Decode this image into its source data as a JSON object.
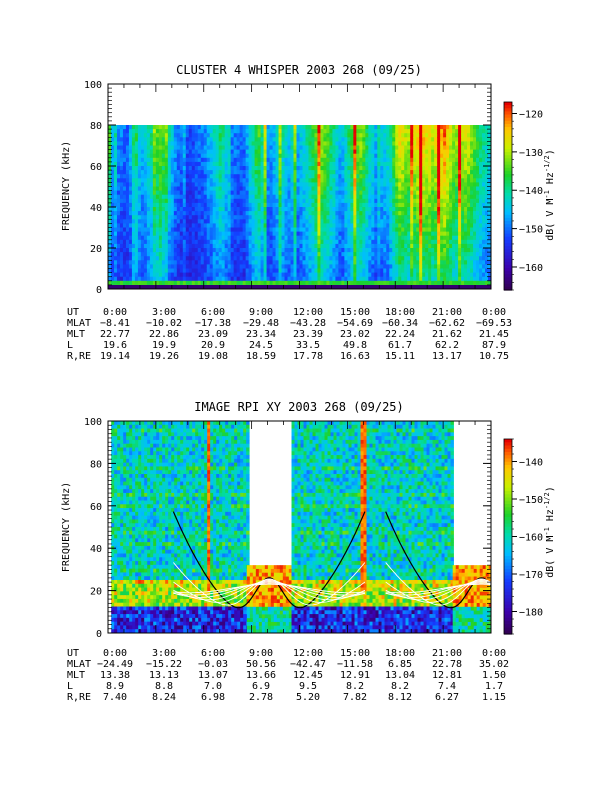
{
  "chart_data": [
    {
      "type": "heatmap",
      "title": "CLUSTER 4 WHISPER 2003 268 (09/25)",
      "ylabel": "FREQUENCY (kHz)",
      "ylim": [
        0,
        100
      ],
      "y_ticks": [
        "0",
        "20",
        "40",
        "60",
        "80",
        "100"
      ],
      "data_freq_max": 80,
      "x_ticks": [
        "0:00",
        "3:00",
        "6:00",
        "9:00",
        "12:00",
        "15:00",
        "18:00",
        "21:00",
        "0:00"
      ],
      "colorbar": {
        "label": "dB( V M",
        "label_sup1": "-1",
        "label_mid": " Hz",
        "label_sup2": "-1/2",
        "label_end": ")",
        "range": [
          -166,
          -117
        ],
        "ticks": [
          -120,
          -130,
          -140,
          -150,
          -160
        ]
      },
      "orbit_table": {
        "rows": [
          {
            "label": "UT",
            "values": [
              "0:00",
              "3:00",
              "6:00",
              "9:00",
              "12:00",
              "15:00",
              "18:00",
              "21:00",
              "0:00"
            ]
          },
          {
            "label": "MLAT",
            "values": [
              "-8.41",
              "-10.02",
              "-17.38",
              "-29.48",
              "-43.28",
              "-54.69",
              "-60.34",
              "-62.62",
              "-69.53"
            ]
          },
          {
            "label": "MLT",
            "values": [
              "22.77",
              "22.86",
              "23.09",
              "23.34",
              "23.39",
              "23.02",
              "22.24",
              "21.62",
              "21.45"
            ]
          },
          {
            "label": "L",
            "values": [
              "19.6",
              "19.9",
              "20.9",
              "24.5",
              "33.5",
              "49.8",
              "61.7",
              "62.2",
              "87.9"
            ]
          },
          {
            "label": "R,RE",
            "values": [
              "19.14",
              "19.26",
              "19.08",
              "18.59",
              "17.78",
              "16.63",
              "15.11",
              "13.17",
              "10.75"
            ]
          }
        ]
      },
      "activity_profile": [
        {
          "x": 0.0,
          "level": 0.2
        },
        {
          "x": 0.5,
          "level": 0.3
        },
        {
          "x": 1.2,
          "level": 0.25
        },
        {
          "x": 1.6,
          "level": 0.6
        },
        {
          "x": 2.0,
          "level": 0.35
        },
        {
          "x": 2.6,
          "level": 0.5
        },
        {
          "x": 3.2,
          "level": 0.7
        },
        {
          "x": 3.8,
          "level": 0.45
        },
        {
          "x": 4.2,
          "level": 0.3
        },
        {
          "x": 5.0,
          "level": 0.2
        },
        {
          "x": 6.0,
          "level": 0.3
        },
        {
          "x": 7.0,
          "level": 0.55
        },
        {
          "x": 7.6,
          "level": 0.3
        },
        {
          "x": 8.4,
          "level": 0.25
        },
        {
          "x": 9.3,
          "level": 0.65
        },
        {
          "x": 10.0,
          "level": 0.3
        },
        {
          "x": 10.8,
          "level": 0.5
        },
        {
          "x": 11.6,
          "level": 0.3
        },
        {
          "x": 12.6,
          "level": 0.55
        },
        {
          "x": 13.2,
          "level": 0.75
        },
        {
          "x": 13.8,
          "level": 0.6
        },
        {
          "x": 14.5,
          "level": 0.35
        },
        {
          "x": 15.2,
          "level": 0.6
        },
        {
          "x": 15.8,
          "level": 0.7
        },
        {
          "x": 16.6,
          "level": 0.35
        },
        {
          "x": 17.5,
          "level": 0.45
        },
        {
          "x": 18.2,
          "level": 0.85
        },
        {
          "x": 18.8,
          "level": 0.7
        },
        {
          "x": 19.5,
          "level": 0.9
        },
        {
          "x": 20.2,
          "level": 0.75
        },
        {
          "x": 21.0,
          "level": 0.95
        },
        {
          "x": 21.6,
          "level": 0.7
        },
        {
          "x": 22.4,
          "level": 0.8
        },
        {
          "x": 23.2,
          "level": 0.55
        },
        {
          "x": 24.0,
          "level": 0.4
        }
      ]
    },
    {
      "type": "heatmap",
      "title": "IMAGE RPI XY 2003 268 (09/25)",
      "ylabel": "FREQUENCY (kHz)",
      "ylim": [
        0,
        100
      ],
      "y_ticks": [
        "0",
        "20",
        "40",
        "60",
        "80",
        "100"
      ],
      "x_ticks": [
        "0:00",
        "3:00",
        "6:00",
        "9:00",
        "12:00",
        "15:00",
        "18:00",
        "21:00",
        "0:00"
      ],
      "data_intervals": [
        {
          "start": 0.2,
          "end": 8.7,
          "fmax": 100
        },
        {
          "start": 8.7,
          "end": 11.5,
          "fmax": 32
        },
        {
          "start": 11.5,
          "end": 21.6,
          "fmax": 100
        },
        {
          "start": 21.6,
          "end": 24.0,
          "fmax": 32
        }
      ],
      "colorbar": {
        "label": "dB( V M",
        "label_sup1": "-1",
        "label_mid": " Hz",
        "label_sup2": "-1/2",
        "label_end": ")",
        "range": [
          -186,
          -134
        ],
        "ticks": [
          -140,
          -150,
          -160,
          -170,
          -180
        ]
      },
      "orbit_table": {
        "rows": [
          {
            "label": "UT",
            "values": [
              "0:00",
              "3:00",
              "6:00",
              "9:00",
              "12:00",
              "15:00",
              "18:00",
              "21:00",
              "0:00"
            ]
          },
          {
            "label": "MLAT",
            "values": [
              "-24.49",
              "-15.22",
              "-0.03",
              "50.56",
              "-42.47",
              "-11.58",
              "6.85",
              "22.78",
              "35.02"
            ]
          },
          {
            "label": "MLT",
            "values": [
              "13.38",
              "13.13",
              "13.07",
              "13.66",
              "12.45",
              "12.91",
              "13.04",
              "12.81",
              "1.50"
            ]
          },
          {
            "label": "L",
            "values": [
              "8.9",
              "8.8",
              "7.0",
              "6.9",
              "9.5",
              "8.2",
              "8.2",
              "7.4",
              "1.7"
            ]
          },
          {
            "label": "R,RE",
            "values": [
              "7.40",
              "8.24",
              "6.98",
              "2.78",
              "5.20",
              "7.82",
              "8.12",
              "6.27",
              "1.15"
            ]
          }
        ]
      },
      "red_bands": [
        6.2,
        15.9
      ],
      "plasma_frequency_curves": [
        {
          "center": 10.1,
          "half_width": 1.3,
          "peak": 22
        },
        {
          "center": 23.4,
          "half_width": 1.3,
          "peak": 22
        }
      ]
    }
  ]
}
